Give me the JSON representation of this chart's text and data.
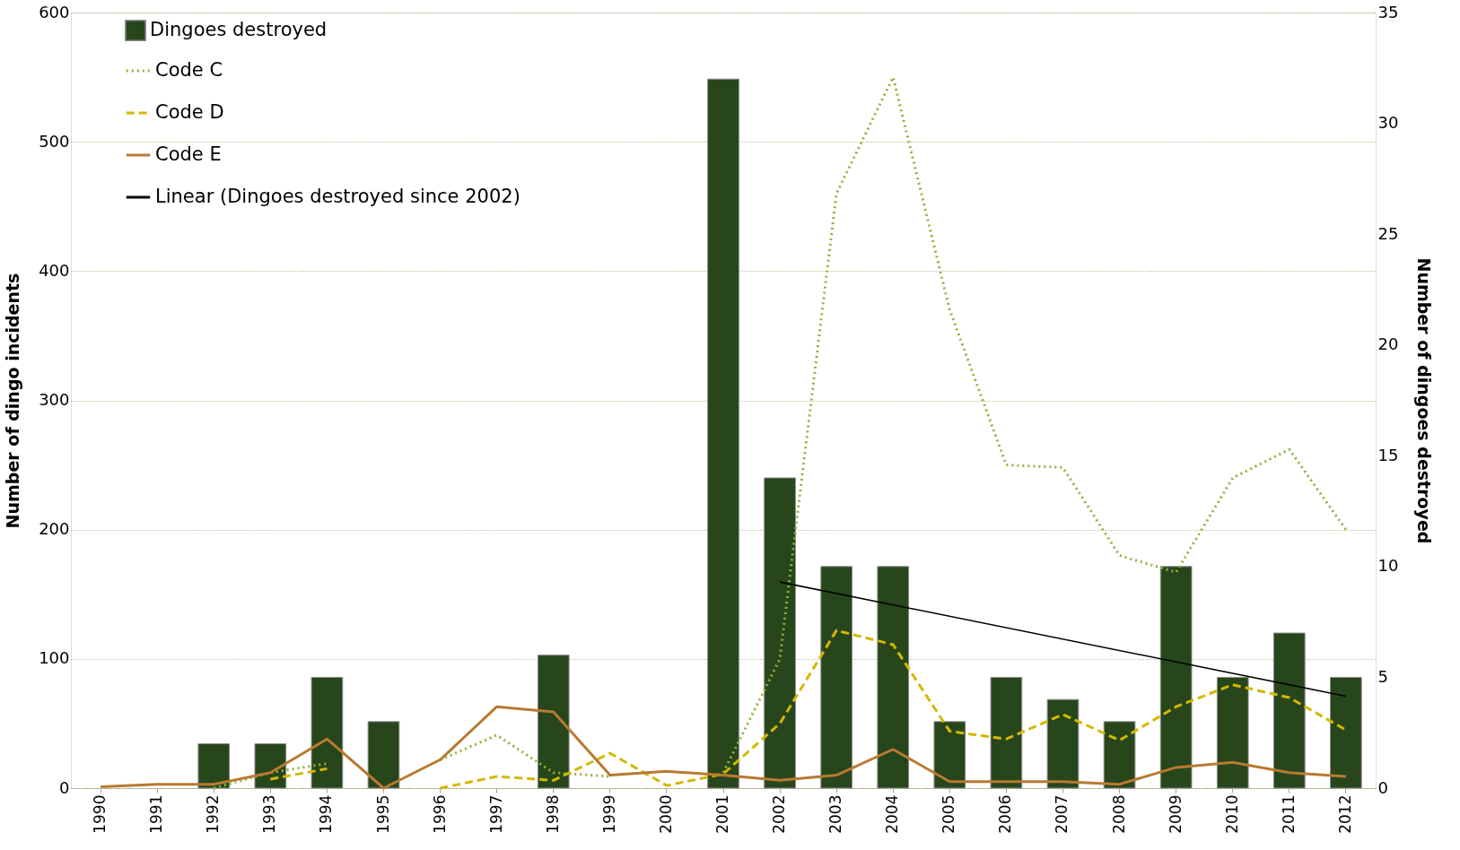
{
  "chart_data": {
    "type": "bar",
    "ylabel": "Number of dingo incidents",
    "y2label": "Number of dingoes destroyed",
    "categories": [
      "1990",
      "1991",
      "1992",
      "1993",
      "1994",
      "1995",
      "1996",
      "1997",
      "1998",
      "1999",
      "2000",
      "2001",
      "2002",
      "2003",
      "2004",
      "2005",
      "2006",
      "2007",
      "2008",
      "2009",
      "2010",
      "2011",
      "2012"
    ],
    "series": [
      {
        "name": "Dingoes destroyed",
        "axis": "y2",
        "color": "#28461b",
        "values": [
          null,
          null,
          2,
          2,
          5,
          3,
          null,
          null,
          6,
          null,
          null,
          32,
          14,
          10,
          10,
          3,
          5,
          4,
          3,
          10,
          5,
          7,
          5
        ]
      },
      {
        "name": "Code C",
        "type": "line",
        "line_style": "dotted",
        "color": "#8db33a",
        "values": [
          null,
          null,
          0,
          12,
          19,
          null,
          22,
          41,
          12,
          9,
          null,
          12,
          100,
          460,
          550,
          370,
          250,
          248,
          180,
          167,
          240,
          262,
          200
        ]
      },
      {
        "name": "Code D",
        "type": "line",
        "line_style": "dashed",
        "color": "#d4b800",
        "values": [
          null,
          null,
          null,
          7,
          15,
          null,
          0,
          9,
          6,
          27,
          2,
          11,
          50,
          122,
          111,
          44,
          38,
          57,
          37,
          63,
          80,
          70,
          45
        ]
      },
      {
        "name": "Code E",
        "type": "line",
        "line_style": "solid",
        "color": "#b87a30",
        "values": [
          1,
          3,
          3,
          12,
          38,
          0,
          22,
          63,
          59,
          10,
          13,
          10,
          6,
          10,
          30,
          5,
          5,
          5,
          3,
          16,
          20,
          12,
          9
        ]
      },
      {
        "name": "Linear (Dingoes destroyed since 2002)",
        "type": "line",
        "axis": "y2",
        "line_style": "solid",
        "color": "#000000",
        "values": [
          null,
          null,
          null,
          null,
          null,
          null,
          null,
          null,
          null,
          null,
          null,
          null,
          9.3,
          null,
          null,
          null,
          null,
          null,
          null,
          null,
          null,
          null,
          4.15
        ]
      }
    ],
    "ylim": [
      0,
      600
    ],
    "yticks": [
      0,
      100,
      200,
      300,
      400,
      500,
      600
    ],
    "y2lim": [
      0,
      35
    ],
    "y2ticks": [
      0,
      5,
      10,
      15,
      20,
      25,
      30,
      35
    ],
    "grid": "y",
    "legend": "top left"
  }
}
